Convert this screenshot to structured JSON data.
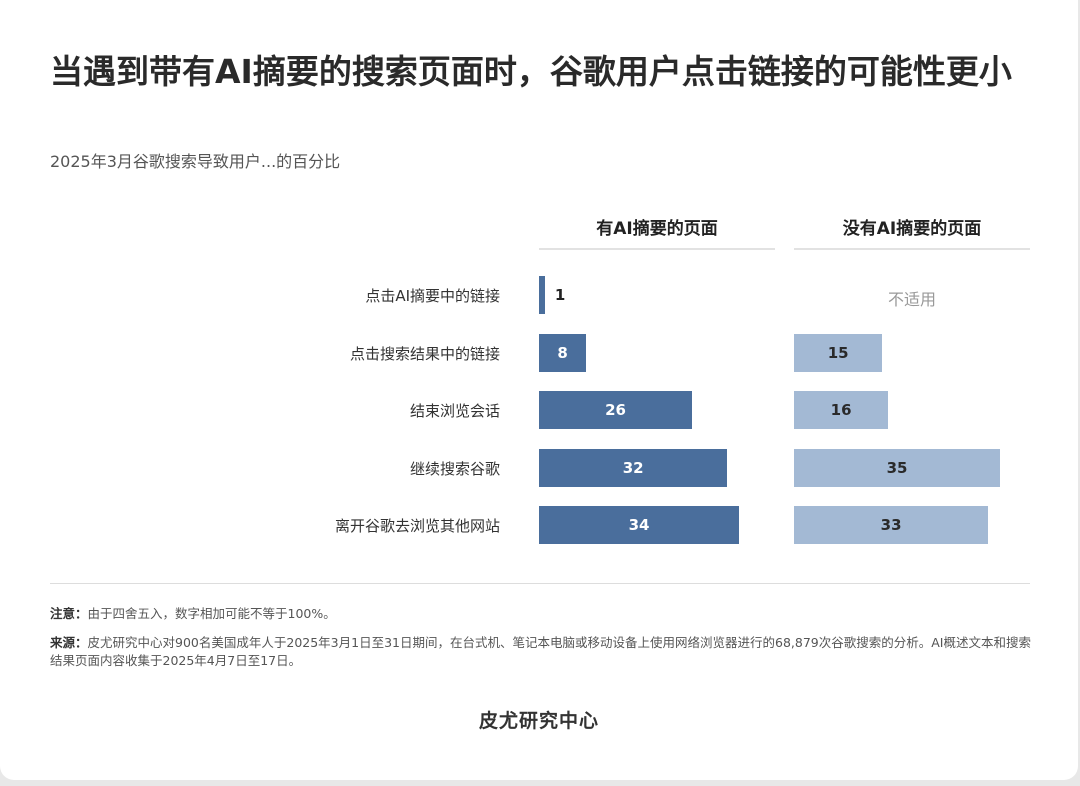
{
  "title": "当遇到带有AI摘要的搜索页面时，谷歌用户点击链接的可能性更小",
  "subtitle": "2025年3月谷歌搜索导致用户...的百分比",
  "chart_data": {
    "type": "bar",
    "orientation": "horizontal",
    "categories": [
      "点击AI摘要中的链接",
      "点击搜索结果中的链接",
      "结束浏览会话",
      "继续搜索谷歌",
      "离开谷歌去浏览其他网站"
    ],
    "series": [
      {
        "name": "有AI摘要的页面",
        "values": [
          1,
          8,
          26,
          32,
          34
        ],
        "color": "#4a6e9c"
      },
      {
        "name": "没有AI摘要的页面",
        "values": [
          null,
          15,
          16,
          35,
          33
        ],
        "color": "#a3b9d4"
      }
    ],
    "na_label": "不适用",
    "xlim": [
      0,
      35
    ]
  },
  "notes": {
    "note_label": "注意：",
    "note_text": "由于四舍五入，数字相加可能不等于100%。",
    "source_label": "来源：",
    "source_text": "皮尤研究中心对900名美国成年人于2025年3月1日至31日期间，在台式机、笔记本电脑或移动设备上使用网络浏览器进行的68,879次谷歌搜索的分析。AI概述文本和搜索结果页面内容收集于2025年4月7日至17日。"
  },
  "org": "皮尤研究中心"
}
